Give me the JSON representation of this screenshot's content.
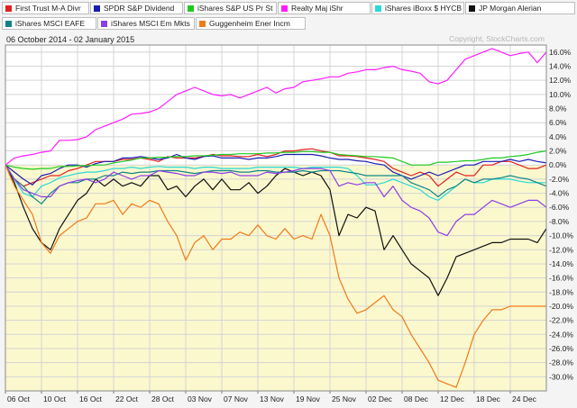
{
  "chart_data": {
    "type": "line",
    "date_range": "06 October 2014 - 02 January 2015",
    "watermark": "Copyright, StockCharts.com",
    "ylim": [
      -32,
      17
    ],
    "y_ticks": [
      16,
      14,
      12,
      10,
      8,
      6,
      4,
      2,
      0,
      -2,
      -4,
      -6,
      -8,
      -10,
      -12,
      -14,
      -16,
      -18,
      -20,
      -22,
      -24,
      -26,
      -28,
      -30
    ],
    "y_tick_labels": [
      "16.0%",
      "14.0%",
      "12.0%",
      "10.0%",
      "8.0%",
      "6.0%",
      "4.0%",
      "2.0%",
      "0.0%",
      "-2.0%",
      "-4.0%",
      "-6.0%",
      "-8.0%",
      "-10.0%",
      "-12.0%",
      "-14.0%",
      "-16.0%",
      "-18.0%",
      "-20.0%",
      "-22.0%",
      "-24.0%",
      "-26.0%",
      "-28.0%",
      "-30.0%"
    ],
    "x_tick_labels": [
      "06  Oct",
      "10  Oct",
      "16  Oct",
      "22  Oct",
      "28  Oct",
      "03  Nov",
      "07  Nov",
      "13  Nov",
      "19  Nov",
      "25  Nov",
      "02  Dec",
      "08  Dec",
      "12  Dec",
      "18  Dec",
      "24  Dec"
    ],
    "x_tick_index": [
      0,
      4,
      8,
      12,
      16,
      20,
      24,
      28,
      32,
      36,
      40,
      44,
      48,
      52,
      56
    ],
    "grid": true,
    "legend_position": "top",
    "fill_below_zero": "#fbf8cd",
    "fill_above_zero": "#ffffff",
    "series": [
      {
        "name": "First Trust M-A Divr",
        "color": "#e02020",
        "values": [
          0,
          -2,
          -3,
          -2.5,
          -2,
          -1.5,
          -1.5,
          -0.8,
          -0.5,
          0,
          0.5,
          0.5,
          0.5,
          0.8,
          0.8,
          1,
          0.8,
          0.5,
          1.2,
          1,
          1,
          1,
          1.2,
          1.5,
          1.3,
          1.3,
          1.2,
          1.2,
          1.5,
          1.2,
          1.5,
          2,
          2,
          2.2,
          2.3,
          2,
          1.8,
          1.3,
          1.3,
          1.2,
          1,
          0.8,
          0.5,
          -0.5,
          -1,
          -1.5,
          -1,
          -1.5,
          -3,
          -2,
          -1,
          -1.5,
          -1.5,
          0,
          0,
          0.5,
          0.5,
          0,
          -0.5,
          -0.5,
          0
        ]
      },
      {
        "name": "SPDR S&P Dividend",
        "color": "#1c1cb0",
        "values": [
          0,
          -1,
          -2,
          -2.8,
          -1.5,
          -1.2,
          -0.5,
          0,
          0,
          -0.3,
          0.2,
          0.5,
          0.5,
          1,
          1,
          1.2,
          1,
          0.8,
          1,
          1.5,
          1,
          0.8,
          1.2,
          1.3,
          1,
          1,
          1,
          0.8,
          1,
          1,
          1.2,
          1.5,
          1.5,
          1.5,
          1.5,
          1.3,
          1,
          0.8,
          0.8,
          0.6,
          0.5,
          0.2,
          0,
          -1,
          -1.5,
          -2,
          -1.5,
          -1,
          -1.5,
          -1,
          -0.5,
          0,
          0,
          0.5,
          0.5,
          0.5,
          0.8,
          0.5,
          0.8,
          0.5,
          0.3
        ]
      },
      {
        "name": "iShares S&P US Pr St",
        "color": "#1fca1f",
        "values": [
          0,
          -0.3,
          -0.5,
          -0.6,
          -0.5,
          -0.5,
          -0.2,
          -0.2,
          -0.1,
          -0.1,
          0,
          0,
          0.3,
          0.5,
          0.7,
          1,
          1,
          1.1,
          1.1,
          1.2,
          1.2,
          1.3,
          1.3,
          1.4,
          1.5,
          1.5,
          1.6,
          1.6,
          1.6,
          1.7,
          1.7,
          1.8,
          1.8,
          1.9,
          1.9,
          1.8,
          1.8,
          1.5,
          1.4,
          1.3,
          1.2,
          1.2,
          1.1,
          1,
          0.5,
          0,
          0,
          0,
          0.4,
          0.4,
          0.5,
          0.6,
          0.6,
          0.8,
          1,
          1,
          1.2,
          1.3,
          1.5,
          1.8,
          2
        ]
      },
      {
        "name": "Realty Maj iShr",
        "color": "#ff1cff",
        "values": [
          0,
          1,
          1.3,
          1.5,
          1.8,
          2,
          3.5,
          3.5,
          3.6,
          4,
          5,
          5.5,
          6,
          6.5,
          7.2,
          7.3,
          7.5,
          8,
          9,
          10,
          10.5,
          11,
          10.5,
          10,
          9.8,
          10,
          9.5,
          10,
          10.5,
          11,
          10.2,
          10.8,
          11,
          11.8,
          12,
          12.2,
          12.5,
          12.5,
          13,
          13.2,
          13.5,
          13.5,
          13.8,
          14,
          13.5,
          13.3,
          13,
          11.8,
          11.5,
          12,
          13.5,
          15,
          15.5,
          16,
          16.5,
          16,
          15.5,
          15.8,
          16,
          14.5,
          16
        ]
      },
      {
        "name": "iShares iBoxx $ HYCB",
        "color": "#29d9d9",
        "values": [
          0,
          -2,
          -4,
          -4.5,
          -3,
          -2.5,
          -1.8,
          -1.5,
          -1.2,
          -1,
          -1,
          -0.8,
          -0.5,
          -0.5,
          -0.3,
          -0.5,
          -0.3,
          -0.2,
          -0.3,
          -0.3,
          -0.3,
          -0.5,
          -0.3,
          -0.3,
          -0.5,
          -0.5,
          -0.5,
          -0.5,
          -0.3,
          -0.3,
          -0.3,
          -0.3,
          -0.3,
          -0.5,
          -0.3,
          -0.3,
          -0.3,
          -0.3,
          -0.5,
          -1.5,
          -2.8,
          -2.8,
          -2.5,
          -2,
          -2.5,
          -3,
          -3.5,
          -4.5,
          -5,
          -4,
          -3,
          -2,
          -2.5,
          -2.5,
          -2,
          -2,
          -2,
          -2.3,
          -2.5,
          -2.5,
          -2.5
        ]
      },
      {
        "name": "JP Morgan Alerian",
        "color": "#111111",
        "values": [
          0,
          -2.5,
          -6,
          -9,
          -11,
          -12,
          -9,
          -7,
          -5,
          -4,
          -2,
          -3,
          -2,
          -3,
          -2.5,
          -3,
          -1.5,
          -1.5,
          -3.5,
          -3,
          -4.5,
          -3,
          -2,
          -3.5,
          -2,
          -3.5,
          -3.5,
          -2.5,
          -4,
          -3,
          -1.5,
          -0.5,
          -1,
          -1.5,
          -1,
          -1.5,
          -3.5,
          -10,
          -7,
          -7.5,
          -6,
          -6.5,
          -12,
          -10,
          -12,
          -14,
          -15,
          -16,
          -18.5,
          -16,
          -13,
          -12.5,
          -12,
          -11.5,
          -11,
          -11,
          -10.5,
          -10.5,
          -10.5,
          -11,
          -9
        ]
      },
      {
        "name": "iShares MSCI EAFE",
        "color": "#118585",
        "values": [
          0,
          -2,
          -3,
          -4.5,
          -5.5,
          -4,
          -3,
          -2.5,
          -2.5,
          -2,
          -2,
          -1.5,
          -1.5,
          -1,
          -1.2,
          -1,
          -1,
          -0.8,
          -0.8,
          -0.8,
          -1,
          -1.2,
          -1,
          -0.8,
          -0.8,
          -0.8,
          -1,
          -1,
          -0.8,
          -0.8,
          -1,
          -1,
          -1,
          -0.8,
          -1,
          -0.8,
          -0.8,
          -0.8,
          -1,
          -1.2,
          -1.5,
          -1.5,
          -1.5,
          -1.5,
          -1.5,
          -2.5,
          -3,
          -3.5,
          -4.5,
          -3.5,
          -3,
          -2,
          -2.5,
          -2,
          -2,
          -1.8,
          -1.5,
          -1.8,
          -2,
          -2.5,
          -3
        ]
      },
      {
        "name": "iShares MSCI Em Mkts",
        "color": "#8c3ee6",
        "values": [
          0,
          -2,
          -3.5,
          -4,
          -4.5,
          -4.5,
          -3,
          -2.5,
          -2.2,
          -2,
          -2.5,
          -2,
          -1,
          -1.5,
          -2,
          -1.5,
          -1.5,
          -0.8,
          -1,
          -1.2,
          -1.5,
          -1.5,
          -1,
          -1,
          -1.2,
          -1,
          -1.5,
          -1.5,
          -1.5,
          -1,
          -1.2,
          -1,
          -0.8,
          -0.5,
          -0.5,
          -0.5,
          -0.8,
          -3,
          -2.5,
          -2.8,
          -2.5,
          -2.5,
          -4.5,
          -3,
          -5,
          -6,
          -6.5,
          -7.5,
          -9.5,
          -10,
          -8,
          -7,
          -7,
          -6,
          -5,
          -5.5,
          -6,
          -5.5,
          -5,
          -5,
          -6
        ]
      },
      {
        "name": "Guggenheim Ener Incm",
        "color": "#ef7a1a",
        "values": [
          0,
          -3,
          -5,
          -7,
          -11,
          -12.5,
          -10,
          -9,
          -8,
          -7.5,
          -5.5,
          -5.5,
          -5,
          -7,
          -5.5,
          -6,
          -5,
          -5.5,
          -8,
          -10,
          -13.5,
          -11,
          -10,
          -12,
          -10.5,
          -10.5,
          -9.5,
          -10,
          -8.5,
          -10,
          -10.5,
          -9,
          -10.5,
          -10,
          -10.5,
          -7,
          -10,
          -16,
          -19,
          -21,
          -20.5,
          -19.5,
          -18.5,
          -20.5,
          -21.5,
          -24,
          -26,
          -28,
          -30.5,
          -31,
          -31.5,
          -28,
          -24,
          -22,
          -20.5,
          -20.5,
          -20,
          -20,
          -20,
          -20,
          -20
        ]
      }
    ]
  }
}
